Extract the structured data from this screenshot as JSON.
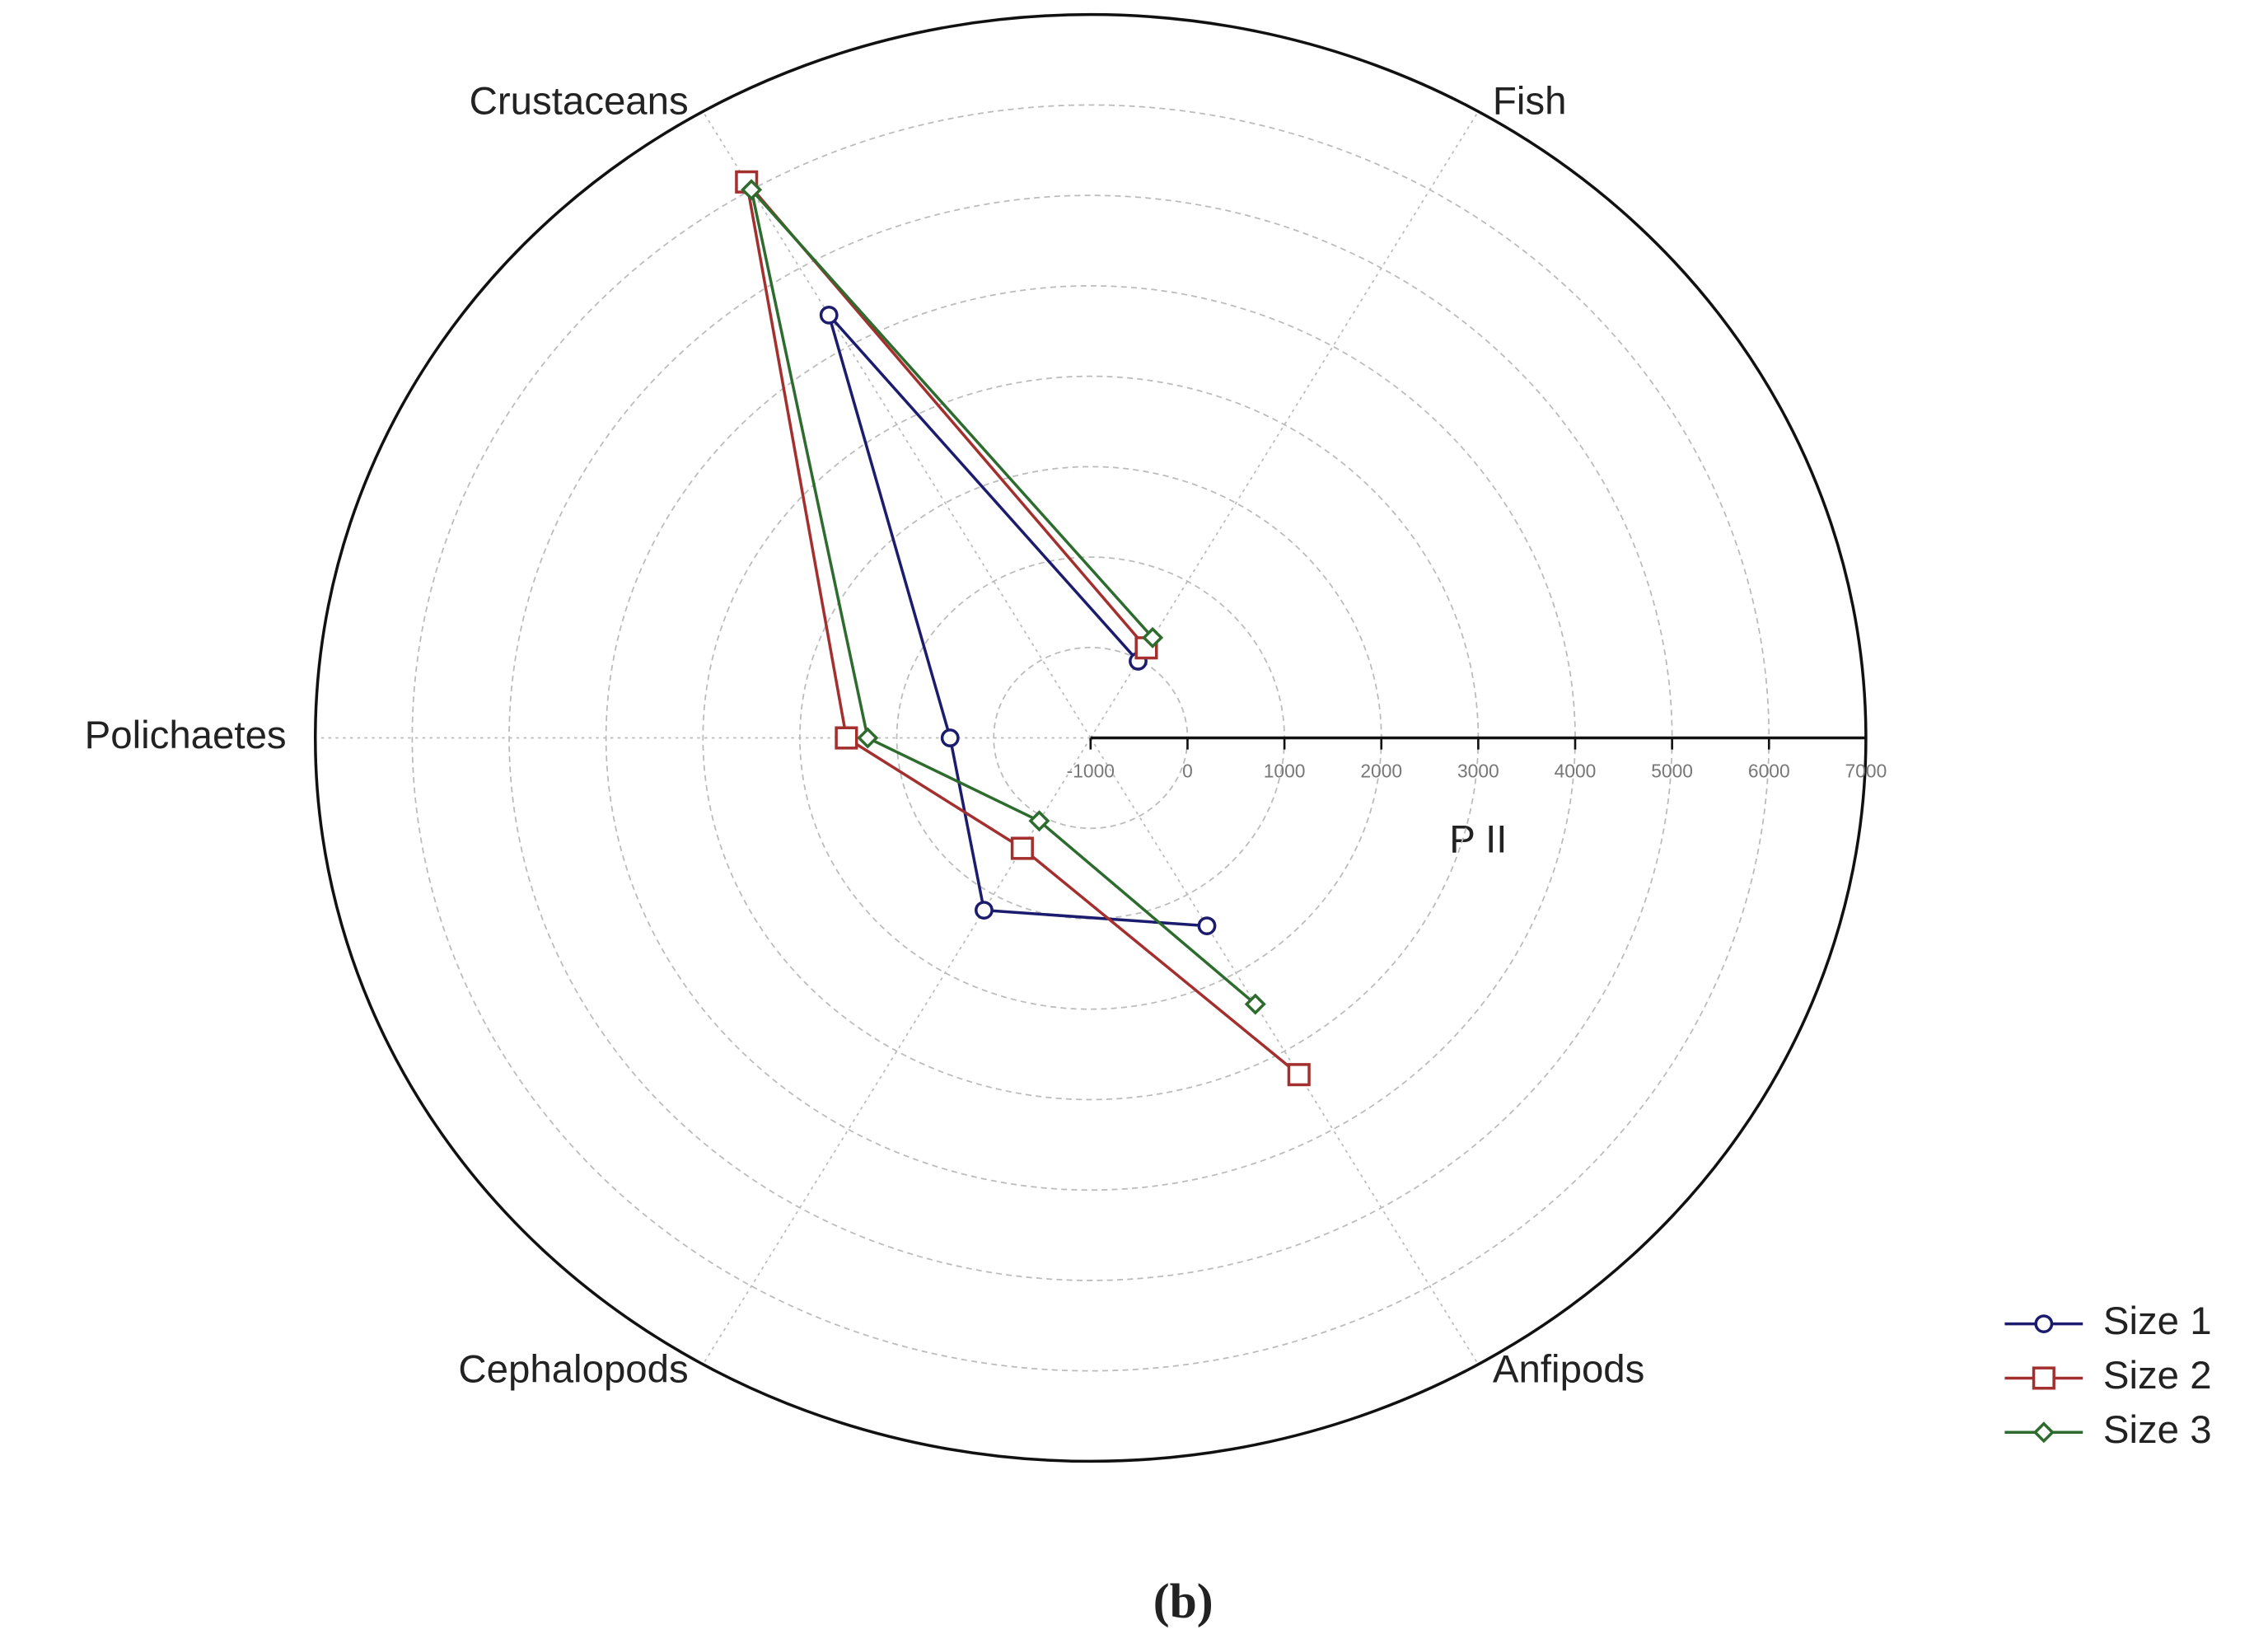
{
  "chart_data": {
    "type": "radar",
    "caption": "(b)",
    "axis_label": "P II",
    "categories": [
      null,
      "Fish",
      "Crustaceans",
      "Polichaetes",
      "Cephalopods",
      "Anfipods"
    ],
    "rlim": [
      -1000,
      7000
    ],
    "rticks": [
      -1000,
      0,
      1000,
      2000,
      3000,
      4000,
      5000,
      6000,
      7000
    ],
    "grid": true,
    "legend": "bottom-right",
    "series": [
      {
        "name": "Size 1",
        "color": "#1c1c6e",
        "marker": "circle",
        "values": [
          null,
          -20,
          4400,
          450,
          1200,
          1400
        ]
      },
      {
        "name": "Size 2",
        "color": "#a3302e",
        "marker": "square",
        "values": [
          null,
          150,
          6100,
          1520,
          410,
          3300
        ]
      },
      {
        "name": "Size 3",
        "color": "#2e6b2e",
        "marker": "diamond",
        "values": [
          null,
          280,
          6000,
          1300,
          60,
          2400
        ]
      }
    ]
  }
}
